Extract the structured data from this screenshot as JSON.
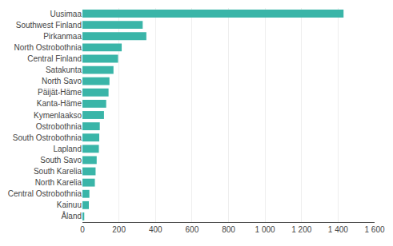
{
  "chart_data": {
    "type": "bar",
    "orientation": "horizontal",
    "categories": [
      "Uusimaa",
      "Southwest Finland",
      "Pirkanmaa",
      "North Ostrobothnia",
      "Central Finland",
      "Satakunta",
      "North Savo",
      "Päijät-Häme",
      "Kanta-Häme",
      "Kymenlaakso",
      "Ostrobothnia",
      "South Ostrobothnia",
      "Lapland",
      "South Savo",
      "South Karelia",
      "North Karelia",
      "Central Ostrobothnia",
      "Kainuu",
      "Åland"
    ],
    "values": [
      1430,
      330,
      350,
      215,
      195,
      170,
      148,
      143,
      130,
      118,
      95,
      92,
      90,
      78,
      72,
      68,
      38,
      35,
      10
    ],
    "color": "#3ab5a8",
    "xlim": [
      0,
      1600
    ],
    "xticks": [
      0,
      200,
      400,
      600,
      800,
      {
        "value": 1000,
        "label": "1 000"
      },
      {
        "value": 1200,
        "label": "1 200"
      },
      {
        "value": 1400,
        "label": "1 400"
      },
      {
        "value": 1600,
        "label": "1 600"
      }
    ],
    "grid": true
  }
}
